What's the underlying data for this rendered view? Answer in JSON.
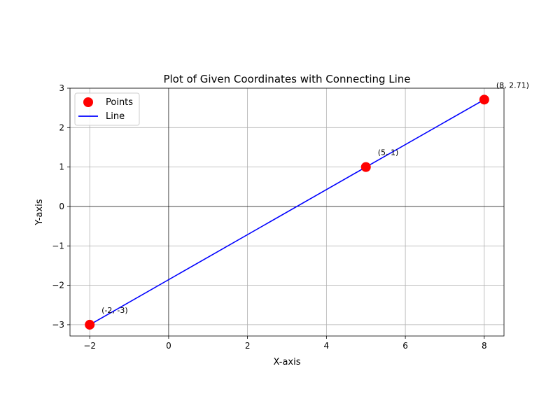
{
  "chart_data": {
    "type": "scatter",
    "title": "Plot of Given Coordinates with Connecting Line",
    "xlabel": "X-axis",
    "ylabel": "Y-axis",
    "xlim": [
      -2.5,
      8.5
    ],
    "ylim": [
      -3.2857,
      3.0
    ],
    "x_ticks": [
      -2,
      0,
      2,
      4,
      6,
      8
    ],
    "x_tick_labels": [
      "−2",
      "0",
      "2",
      "4",
      "6",
      "8"
    ],
    "y_ticks": [
      -3,
      -2,
      -1,
      0,
      1,
      2,
      3
    ],
    "y_tick_labels": [
      "−3",
      "−2",
      "−1",
      "0",
      "1",
      "2",
      "3"
    ],
    "grid": true,
    "reference_lines": {
      "x": 0,
      "y": 0
    },
    "legend_position": "top-left",
    "series": [
      {
        "name": "Points",
        "kind": "scatter",
        "color": "#ff0000",
        "points": [
          {
            "x": -2,
            "y": -3,
            "label": "(-2, -3)"
          },
          {
            "x": 5,
            "y": 1,
            "label": "(5, 1)"
          },
          {
            "x": 8,
            "y": 2.71,
            "label": "(8, 2.71)"
          }
        ]
      },
      {
        "name": "Line",
        "kind": "line",
        "color": "#0000ff",
        "points": [
          {
            "x": -2,
            "y": -3
          },
          {
            "x": 5,
            "y": 1
          },
          {
            "x": 8,
            "y": 2.71
          }
        ]
      }
    ]
  }
}
